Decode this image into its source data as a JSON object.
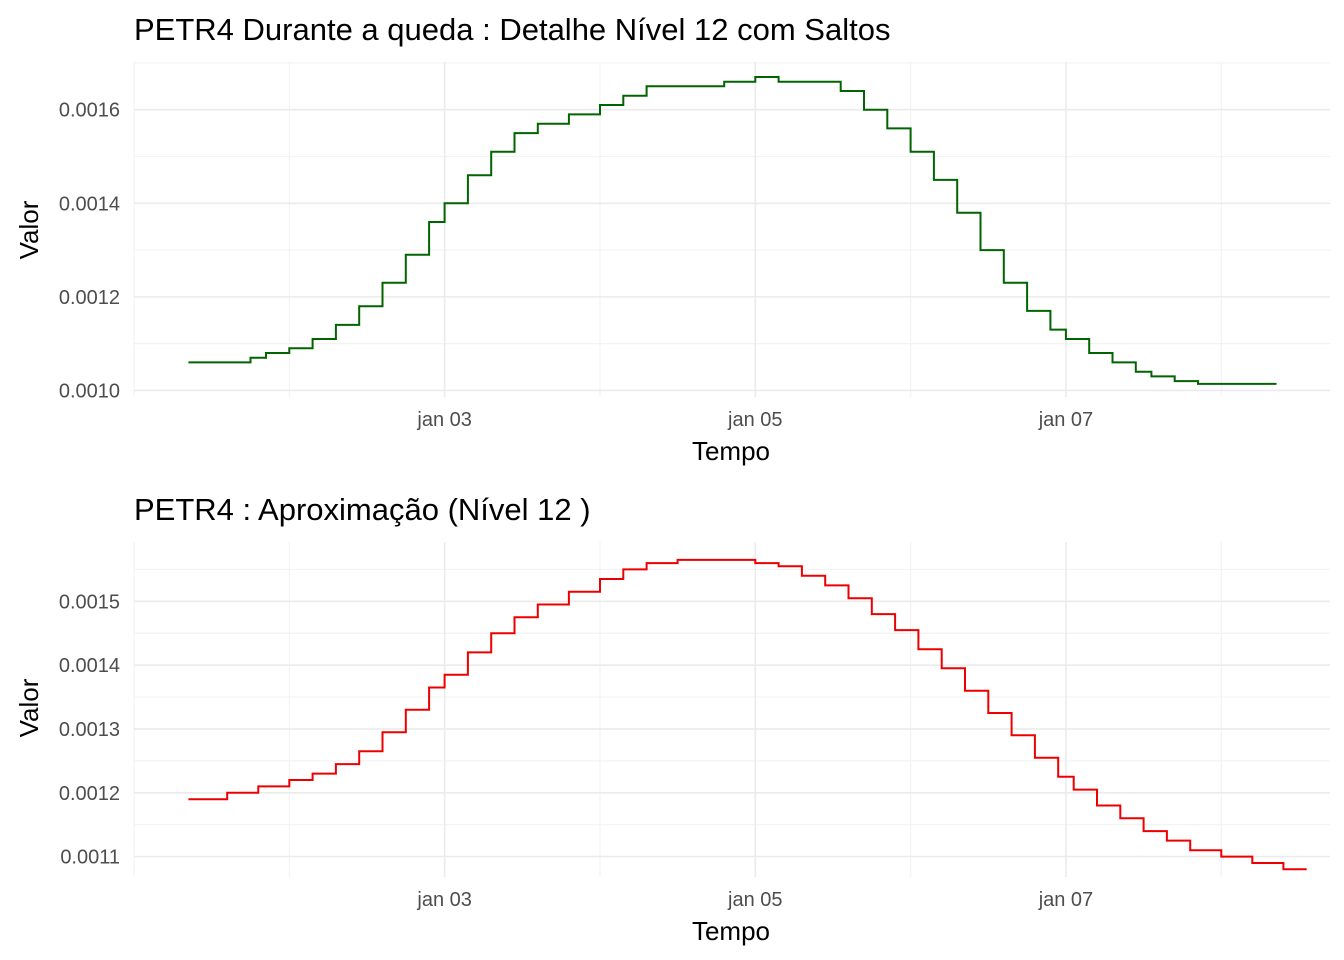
{
  "chart_data": [
    {
      "type": "line",
      "step": true,
      "title": "PETR4 Durante a queda : Detalhe Nível 12 com Saltos",
      "xlabel": "Tempo",
      "ylabel": "Valor",
      "x_ticks": [
        {
          "day": 3,
          "label": "jan 03"
        },
        {
          "day": 5,
          "label": "jan 05"
        },
        {
          "day": 7,
          "label": "jan 07"
        }
      ],
      "y_ticks": [
        {
          "value": 0.001,
          "label": "0.0010"
        },
        {
          "value": 0.0012,
          "label": "0.0012"
        },
        {
          "value": 0.0014,
          "label": "0.0014"
        },
        {
          "value": 0.0016,
          "label": "0.0016"
        }
      ],
      "xlim": [
        1.0,
        8.7
      ],
      "ylim": [
        0.000986,
        0.001702
      ],
      "grid": true,
      "color": "#006400",
      "series": [
        {
          "values": [
            [
              1.35,
              0.00106
            ],
            [
              1.75,
              0.00107
            ],
            [
              1.85,
              0.00108
            ],
            [
              2.0,
              0.00109
            ],
            [
              2.15,
              0.00111
            ],
            [
              2.3,
              0.00114
            ],
            [
              2.45,
              0.00118
            ],
            [
              2.6,
              0.00123
            ],
            [
              2.75,
              0.00129
            ],
            [
              2.9,
              0.00136
            ],
            [
              3.0,
              0.0014
            ],
            [
              3.15,
              0.00146
            ],
            [
              3.3,
              0.00151
            ],
            [
              3.45,
              0.00155
            ],
            [
              3.6,
              0.00157
            ],
            [
              3.8,
              0.00159
            ],
            [
              4.0,
              0.00161
            ],
            [
              4.15,
              0.00163
            ],
            [
              4.3,
              0.00165
            ],
            [
              4.8,
              0.00166
            ],
            [
              5.0,
              0.00167
            ],
            [
              5.1,
              0.00167
            ],
            [
              5.15,
              0.00166
            ],
            [
              5.4,
              0.00166
            ],
            [
              5.55,
              0.00164
            ],
            [
              5.7,
              0.0016
            ],
            [
              5.85,
              0.00156
            ],
            [
              6.0,
              0.00151
            ],
            [
              6.15,
              0.00145
            ],
            [
              6.3,
              0.00138
            ],
            [
              6.45,
              0.0013
            ],
            [
              6.6,
              0.00123
            ],
            [
              6.75,
              0.00117
            ],
            [
              6.9,
              0.00113
            ],
            [
              7.0,
              0.00111
            ],
            [
              7.15,
              0.00108
            ],
            [
              7.3,
              0.00106
            ],
            [
              7.45,
              0.00104
            ],
            [
              7.55,
              0.00103
            ],
            [
              7.7,
              0.00102
            ],
            [
              7.85,
              0.001014
            ],
            [
              8.3,
              0.001014
            ],
            [
              8.35,
              0.001012
            ]
          ]
        }
      ]
    },
    {
      "type": "line",
      "step": true,
      "title": "PETR4 : Aproximação (Nível 12 )",
      "xlabel": "Tempo",
      "ylabel": "Valor",
      "x_ticks": [
        {
          "day": 3,
          "label": "jan 03"
        },
        {
          "day": 5,
          "label": "jan 05"
        },
        {
          "day": 7,
          "label": "jan 07"
        }
      ],
      "y_ticks": [
        {
          "value": 0.0011,
          "label": "0.0011"
        },
        {
          "value": 0.0012,
          "label": "0.0012"
        },
        {
          "value": 0.0013,
          "label": "0.0013"
        },
        {
          "value": 0.0014,
          "label": "0.0014"
        },
        {
          "value": 0.0015,
          "label": "0.0015"
        }
      ],
      "xlim": [
        1.0,
        8.7
      ],
      "ylim": [
        0.001068,
        0.001593
      ],
      "grid": true,
      "color": "#ee0000",
      "series": [
        {
          "values": [
            [
              1.35,
              0.00119
            ],
            [
              1.6,
              0.0012
            ],
            [
              1.8,
              0.00121
            ],
            [
              2.0,
              0.00122
            ],
            [
              2.15,
              0.00123
            ],
            [
              2.3,
              0.001245
            ],
            [
              2.45,
              0.001265
            ],
            [
              2.6,
              0.001295
            ],
            [
              2.75,
              0.00133
            ],
            [
              2.9,
              0.001365
            ],
            [
              3.0,
              0.001385
            ],
            [
              3.15,
              0.00142
            ],
            [
              3.3,
              0.00145
            ],
            [
              3.45,
              0.001475
            ],
            [
              3.6,
              0.001495
            ],
            [
              3.8,
              0.001515
            ],
            [
              4.0,
              0.001535
            ],
            [
              4.15,
              0.00155
            ],
            [
              4.3,
              0.00156
            ],
            [
              4.5,
              0.001565
            ],
            [
              4.8,
              0.001565
            ],
            [
              5.0,
              0.00156
            ],
            [
              5.15,
              0.001555
            ],
            [
              5.3,
              0.00154
            ],
            [
              5.45,
              0.001525
            ],
            [
              5.6,
              0.001505
            ],
            [
              5.75,
              0.00148
            ],
            [
              5.9,
              0.001455
            ],
            [
              6.05,
              0.001425
            ],
            [
              6.2,
              0.001395
            ],
            [
              6.35,
              0.00136
            ],
            [
              6.5,
              0.001325
            ],
            [
              6.65,
              0.00129
            ],
            [
              6.8,
              0.001255
            ],
            [
              6.95,
              0.001225
            ],
            [
              7.05,
              0.001205
            ],
            [
              7.2,
              0.00118
            ],
            [
              7.35,
              0.00116
            ],
            [
              7.5,
              0.00114
            ],
            [
              7.65,
              0.001125
            ],
            [
              7.8,
              0.00111
            ],
            [
              8.0,
              0.0011
            ],
            [
              8.2,
              0.00109
            ],
            [
              8.4,
              0.00108
            ],
            [
              8.55,
              0.00108
            ]
          ]
        }
      ]
    }
  ]
}
